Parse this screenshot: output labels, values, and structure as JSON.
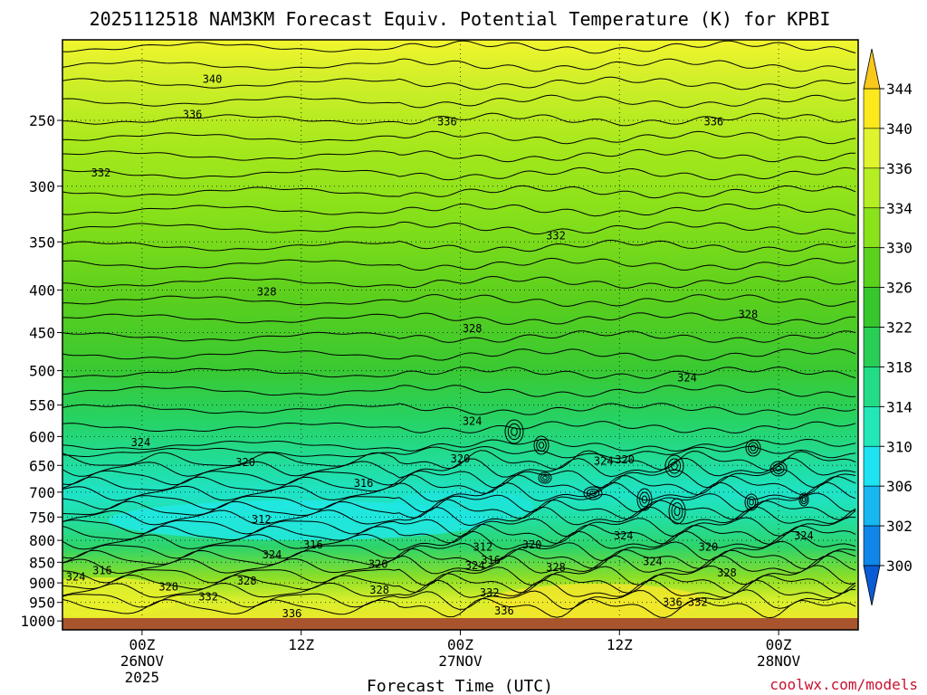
{
  "chart_data": {
    "type": "heatmap",
    "title": "2025112518 NAM3KM Forecast Equiv. Potential Temperature (K) for KPBI",
    "xlabel": "Forecast Time (UTC)",
    "ylabel": "",
    "y_ticks": [
      250,
      300,
      350,
      400,
      450,
      500,
      550,
      600,
      650,
      700,
      750,
      800,
      850,
      900,
      950,
      1000
    ],
    "ylim": [
      1025,
      200
    ],
    "y_scale": "log",
    "x_ticks": [
      {
        "hours": 6,
        "lines": [
          "00Z",
          "26NOV",
          "2025"
        ]
      },
      {
        "hours": 18,
        "lines": [
          "12Z"
        ]
      },
      {
        "hours": 30,
        "lines": [
          "00Z",
          "27NOV"
        ]
      },
      {
        "hours": 42,
        "lines": [
          "12Z"
        ]
      },
      {
        "hours": 54,
        "lines": [
          "00Z",
          "28NOV"
        ]
      }
    ],
    "xlim": [
      0,
      60
    ],
    "grid": true,
    "colorbar": {
      "levels": [
        300,
        302,
        306,
        310,
        314,
        318,
        322,
        326,
        330,
        334,
        336,
        340,
        344
      ],
      "tick_labels": [
        344,
        340,
        336,
        334,
        330,
        326,
        322,
        318,
        314,
        310,
        306,
        302,
        300
      ],
      "colors": [
        "#0a5bd6",
        "#0f86e8",
        "#17b7f0",
        "#1ee3f0",
        "#22e8b8",
        "#22dd85",
        "#29cf55",
        "#36c72c",
        "#5ad11b",
        "#8ae21a",
        "#b6ee24",
        "#e0f42e",
        "#fbe81d",
        "#f9c81a"
      ]
    },
    "contour_labels": [
      {
        "value": 340,
        "x": 11.3,
        "y": 223
      },
      {
        "value": 336,
        "x": 9.8,
        "y": 246
      },
      {
        "value": 336,
        "x": 29.0,
        "y": 251
      },
      {
        "value": 336,
        "x": 49.1,
        "y": 251
      },
      {
        "value": 332,
        "x": 2.9,
        "y": 289
      },
      {
        "value": 332,
        "x": 37.2,
        "y": 344
      },
      {
        "value": 328,
        "x": 15.4,
        "y": 402
      },
      {
        "value": 328,
        "x": 30.9,
        "y": 445
      },
      {
        "value": 328,
        "x": 51.7,
        "y": 428
      },
      {
        "value": 324,
        "x": 47.1,
        "y": 510
      },
      {
        "value": 324,
        "x": 30.9,
        "y": 575
      },
      {
        "value": 324,
        "x": 5.9,
        "y": 610
      },
      {
        "value": 320,
        "x": 13.8,
        "y": 645
      },
      {
        "value": 320,
        "x": 30.0,
        "y": 638
      },
      {
        "value": 324,
        "x": 40.8,
        "y": 642
      },
      {
        "value": 320,
        "x": 42.4,
        "y": 640
      },
      {
        "value": 316,
        "x": 22.7,
        "y": 683
      },
      {
        "value": 312,
        "x": 15.0,
        "y": 755
      },
      {
        "value": 316,
        "x": 18.9,
        "y": 810
      },
      {
        "value": 324,
        "x": 15.8,
        "y": 832
      },
      {
        "value": 312,
        "x": 31.7,
        "y": 815
      },
      {
        "value": 320,
        "x": 35.4,
        "y": 810
      },
      {
        "value": 316,
        "x": 32.3,
        "y": 845
      },
      {
        "value": 324,
        "x": 31.1,
        "y": 858
      },
      {
        "value": 328,
        "x": 37.2,
        "y": 862
      },
      {
        "value": 320,
        "x": 23.8,
        "y": 855
      },
      {
        "value": 324,
        "x": 42.3,
        "y": 790
      },
      {
        "value": 324,
        "x": 44.5,
        "y": 848
      },
      {
        "value": 320,
        "x": 48.7,
        "y": 815
      },
      {
        "value": 328,
        "x": 50.1,
        "y": 875
      },
      {
        "value": 324,
        "x": 55.9,
        "y": 790
      },
      {
        "value": 316,
        "x": 3.0,
        "y": 870
      },
      {
        "value": 324,
        "x": 1.0,
        "y": 885
      },
      {
        "value": 328,
        "x": 8.0,
        "y": 910
      },
      {
        "value": 328,
        "x": 13.9,
        "y": 895
      },
      {
        "value": 332,
        "x": 11.0,
        "y": 935
      },
      {
        "value": 328,
        "x": 23.9,
        "y": 918
      },
      {
        "value": 332,
        "x": 32.2,
        "y": 925
      },
      {
        "value": 336,
        "x": 17.3,
        "y": 980
      },
      {
        "value": 336,
        "x": 33.3,
        "y": 973
      },
      {
        "value": 336,
        "x": 46.0,
        "y": 950
      },
      {
        "value": 332,
        "x": 47.9,
        "y": 950
      }
    ]
  },
  "credit": "coolwx.com/models"
}
